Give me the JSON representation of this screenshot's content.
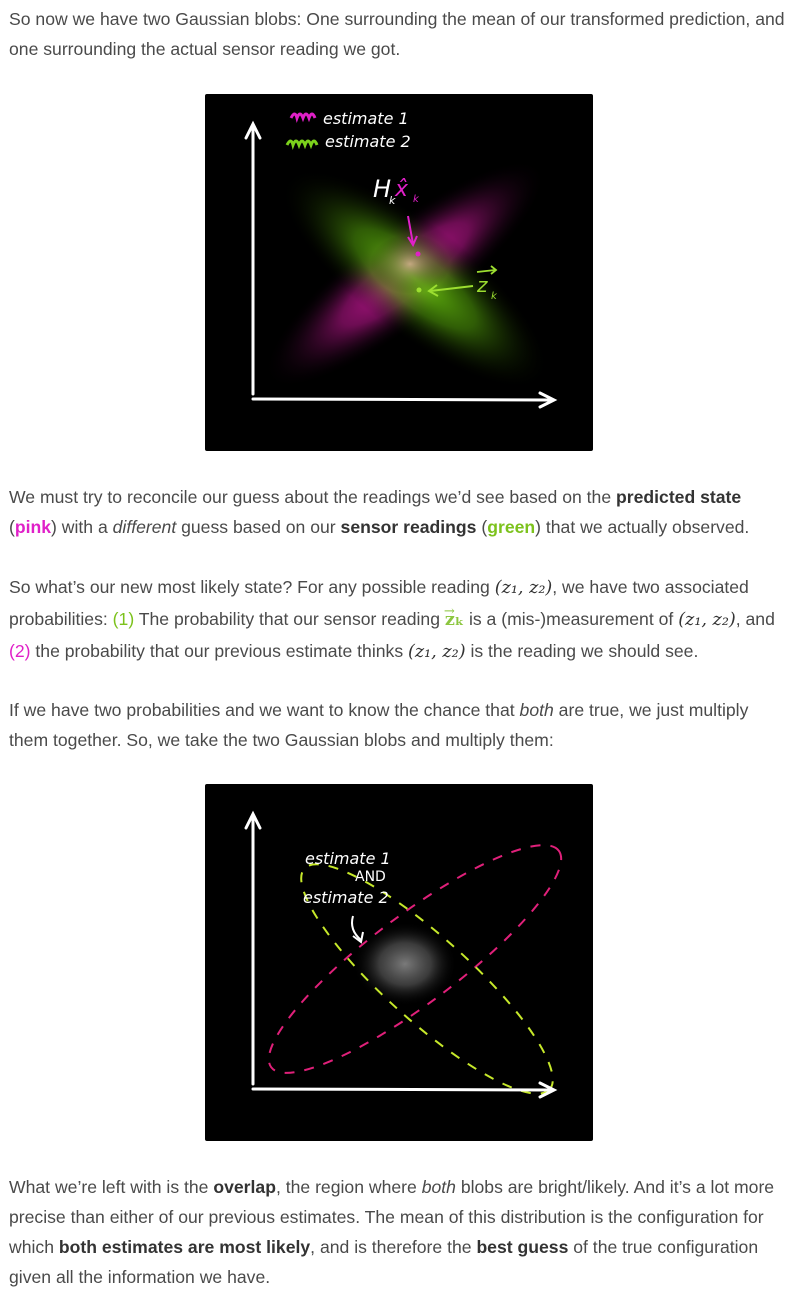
{
  "para1": {
    "text": "So now we have two Gaussian blobs: One surrounding the mean of our transformed prediction, and one surrounding the actual sensor reading we got."
  },
  "figure1": {
    "legend1": "estimate 1",
    "legend2": "estimate 2",
    "label_h": "H",
    "label_h_sub": "k",
    "label_x": "x̂",
    "label_x_sub": "k",
    "label_z": "z",
    "label_z_sub": "k",
    "colors": {
      "pink": "#d3199f",
      "green": "#5fb80e",
      "axis": "#ffffff"
    }
  },
  "para2": {
    "t1": "We must try to reconcile our guess about the readings we’d see based on the ",
    "b1": "predicted state",
    "t2": " (",
    "pink": "pink",
    "t3": ") with a ",
    "em1": "different",
    "t4": " guess based on our ",
    "b2": "sensor readings",
    "t5": " (",
    "green": "green",
    "t6": ") that we actually observed."
  },
  "para3": {
    "t1": "So what’s our new most likely state? For any possible reading ",
    "m1": "(z₁, z₂)",
    "t2": ", we have two associated probabilities: ",
    "n1": "(1)",
    "t3": " The probability that our sensor reading ",
    "zk": "zₖ",
    "t4": " is a (mis-)measurement of ",
    "m2": "(z₁, z₂)",
    "t5": ", and ",
    "n2": "(2)",
    "t6": " the probability that our previous estimate thinks ",
    "m3": "(z₁, z₂)",
    "t7": " is the reading we should see."
  },
  "para4": {
    "t1": "If we have two probabilities and we want to know the chance that ",
    "em1": "both",
    "t2": " are true, we just multiply them together. So, we take the two Gaussian blobs and multiply them:"
  },
  "figure2": {
    "line1": "estimate 1",
    "line2": "AND",
    "line3": "estimate 2",
    "colors": {
      "pink": "#e0207a",
      "green": "#c6e82a",
      "axis": "#ffffff"
    }
  },
  "para5": {
    "t1": "What we’re left with is the ",
    "b1": "overlap",
    "t2": ", the region where ",
    "em1": "both",
    "t3": " blobs are bright/likely. And it’s a lot more precise than either of our previous estimates. The mean of this distribution is the configu­ration for which ",
    "b2": "both estimates are most likely",
    "t4": ", and is therefore the ",
    "b3": "best guess",
    "t5": " of the true configuration given all the information we have."
  }
}
